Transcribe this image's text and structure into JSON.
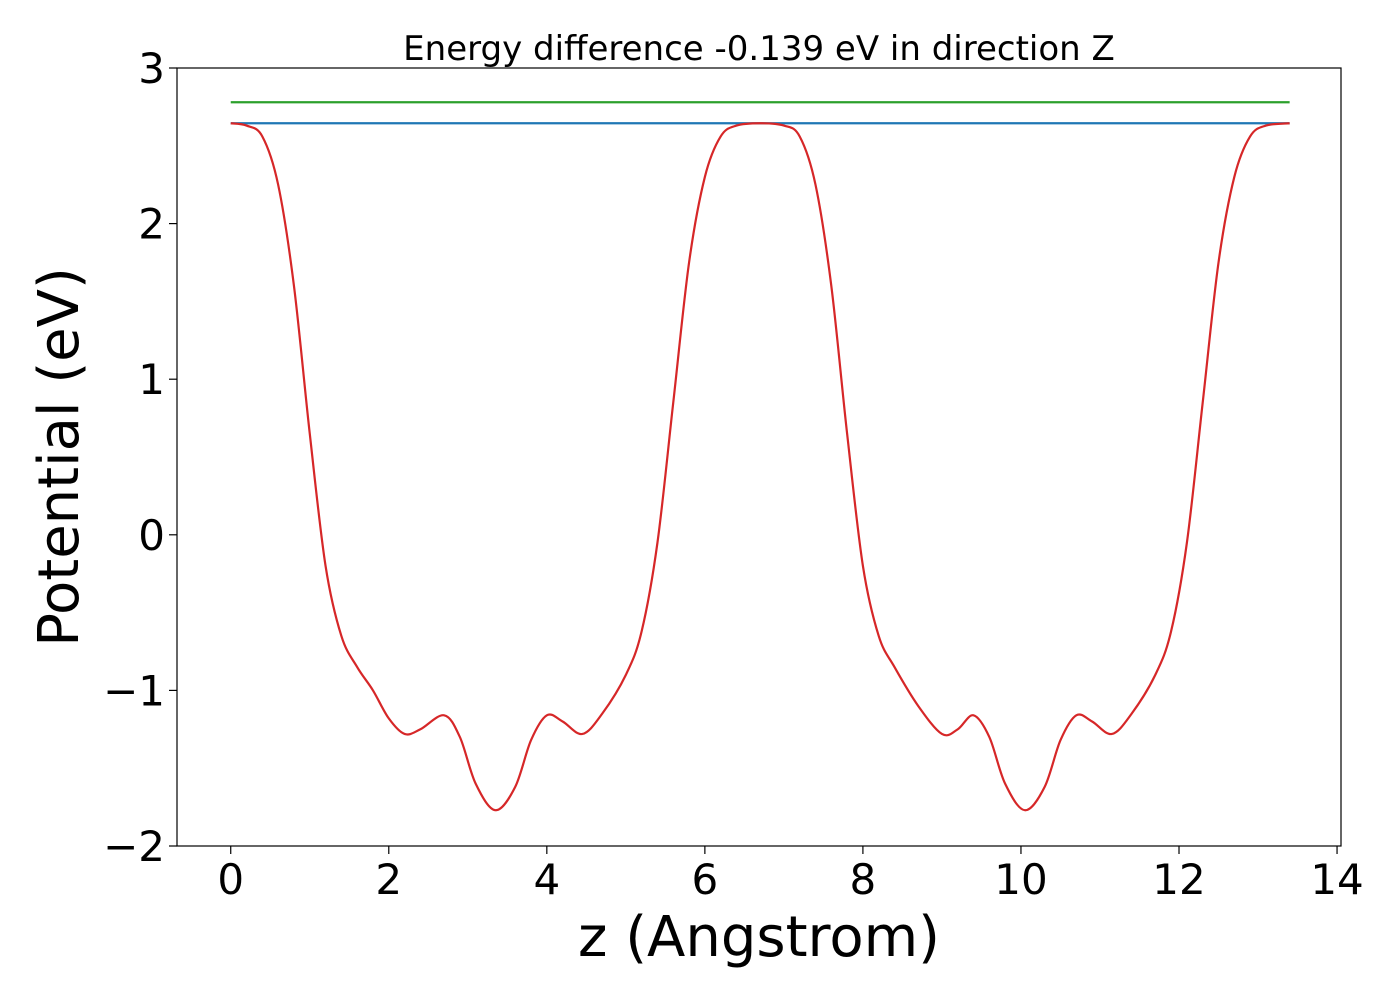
{
  "chart_data": {
    "type": "line",
    "title": "Energy difference -0.139 eV in direction Z",
    "xlabel": "z (Angstrom)",
    "ylabel": "Potential (eV)",
    "xlim": [
      -0.68,
      14.05
    ],
    "ylim": [
      -2.0,
      3.0
    ],
    "xticks": [
      0,
      2,
      4,
      6,
      8,
      10,
      12,
      14
    ],
    "yticks": [
      -2,
      -1,
      0,
      1,
      2,
      3
    ],
    "xtick_labels": [
      "0",
      "2",
      "4",
      "6",
      "8",
      "10",
      "12",
      "14"
    ],
    "ytick_labels": [
      "−2",
      "−1",
      "0",
      "1",
      "2",
      "3"
    ],
    "grid": false,
    "legend": "none",
    "series": [
      {
        "color": "#2ca02c",
        "x": [
          0,
          13.4
        ],
        "y": [
          2.78,
          2.78
        ]
      },
      {
        "color": "#1f77b4",
        "x": [
          0,
          13.4
        ],
        "y": [
          2.645,
          2.645
        ]
      },
      {
        "color": "#d62728",
        "x": [
          0.0,
          0.2,
          0.4,
          0.6,
          0.8,
          1.0,
          1.2,
          1.4,
          1.6,
          1.8,
          2.0,
          2.2,
          2.4,
          2.7,
          2.9,
          3.1,
          3.35,
          3.6,
          3.8,
          4.0,
          4.2,
          4.45,
          4.7,
          5.0,
          5.2,
          5.4,
          5.6,
          5.8,
          6.0,
          6.2,
          6.4,
          6.7,
          7.0,
          7.2,
          7.4,
          7.6,
          7.8,
          8.0,
          8.2,
          8.4,
          8.7,
          9.0,
          9.2,
          9.4,
          9.6,
          9.8,
          10.05,
          10.3,
          10.5,
          10.7,
          10.9,
          11.15,
          11.4,
          11.7,
          11.9,
          12.1,
          12.3,
          12.5,
          12.7,
          12.9,
          13.1,
          13.4
        ],
        "y": [
          2.645,
          2.63,
          2.56,
          2.25,
          1.6,
          0.65,
          -0.2,
          -0.65,
          -0.85,
          -1.0,
          -1.18,
          -1.28,
          -1.25,
          -1.16,
          -1.3,
          -1.6,
          -1.77,
          -1.62,
          -1.32,
          -1.16,
          -1.2,
          -1.28,
          -1.15,
          -0.9,
          -0.62,
          -0.05,
          0.85,
          1.75,
          2.3,
          2.56,
          2.63,
          2.645,
          2.63,
          2.56,
          2.25,
          1.6,
          0.65,
          -0.2,
          -0.65,
          -0.85,
          -1.1,
          -1.28,
          -1.25,
          -1.16,
          -1.3,
          -1.6,
          -1.77,
          -1.62,
          -1.32,
          -1.16,
          -1.2,
          -1.28,
          -1.15,
          -0.9,
          -0.62,
          -0.05,
          0.85,
          1.75,
          2.3,
          2.56,
          2.63,
          2.645
        ]
      }
    ]
  }
}
